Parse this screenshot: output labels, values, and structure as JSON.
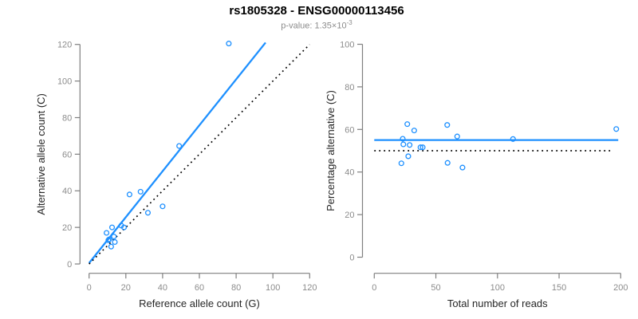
{
  "header": {
    "title": "rs1805328 - ENSG00000113456",
    "subtitle_prefix": "p-value: 1.35×10",
    "subtitle_exponent": "-3"
  },
  "colors": {
    "accent": "#1e90ff",
    "reference_line": "#000000",
    "axis": "#7f7f7f",
    "tick_label": "#8c8c8c",
    "axis_title": "#262626"
  },
  "chart_data": [
    {
      "name": "allele-count-scatter",
      "type": "scatter",
      "xlabel": "Reference allele count (G)",
      "ylabel": "Alternative allele count (C)",
      "xlim": [
        0,
        120
      ],
      "ylim": [
        0,
        120
      ],
      "xticks": [
        0,
        20,
        40,
        60,
        80,
        100,
        120
      ],
      "yticks": [
        0,
        20,
        40,
        60,
        80,
        100,
        120
      ],
      "grid": false,
      "points": [
        [
          76,
          120.5
        ],
        [
          49,
          64.5
        ],
        [
          22,
          38
        ],
        [
          28,
          39.5
        ],
        [
          40,
          31.5
        ],
        [
          32,
          28
        ],
        [
          17.5,
          21
        ],
        [
          19,
          20
        ],
        [
          12.5,
          20
        ],
        [
          9.5,
          17
        ],
        [
          13.5,
          15
        ],
        [
          11,
          13.5
        ],
        [
          14,
          12
        ],
        [
          10.5,
          13
        ],
        [
          12,
          9.5
        ]
      ],
      "lines": [
        {
          "name": "fit-line",
          "style": "solid",
          "color": "accent",
          "from": [
            0,
            0.5
          ],
          "to": [
            96,
            121
          ]
        },
        {
          "name": "identity-line",
          "style": "dotted",
          "color": "reference",
          "from": [
            0,
            0
          ],
          "to": [
            120,
            120
          ]
        }
      ]
    },
    {
      "name": "percentage-scatter",
      "type": "scatter",
      "xlabel": "Total number of reads",
      "ylabel": "Percentage alternative (C)",
      "xlim": [
        0,
        200
      ],
      "ylim": [
        0,
        100
      ],
      "xticks": [
        0,
        50,
        100,
        150,
        200
      ],
      "yticks": [
        0,
        20,
        40,
        60,
        80,
        100
      ],
      "grid": false,
      "points": [
        [
          22,
          44.1
        ],
        [
          23.1,
          55.6
        ],
        [
          23.6,
          53
        ],
        [
          26.8,
          62.5
        ],
        [
          27.6,
          47.4
        ],
        [
          28.7,
          52.7
        ],
        [
          32.4,
          59.5
        ],
        [
          37.5,
          51.6
        ],
        [
          39.3,
          51.6
        ],
        [
          59.2,
          62.1
        ],
        [
          59.5,
          44.3
        ],
        [
          67.3,
          56.7
        ],
        [
          71.6,
          42.1
        ],
        [
          112.6,
          55.5
        ],
        [
          196.4,
          60.2
        ]
      ],
      "lines": [
        {
          "name": "mean-line",
          "style": "solid",
          "color": "accent",
          "from": [
            0,
            55
          ],
          "to": [
            198,
            55
          ]
        },
        {
          "name": "null-line",
          "style": "dotted",
          "color": "reference",
          "from": [
            0,
            50
          ],
          "to": [
            194,
            50
          ]
        }
      ]
    }
  ]
}
